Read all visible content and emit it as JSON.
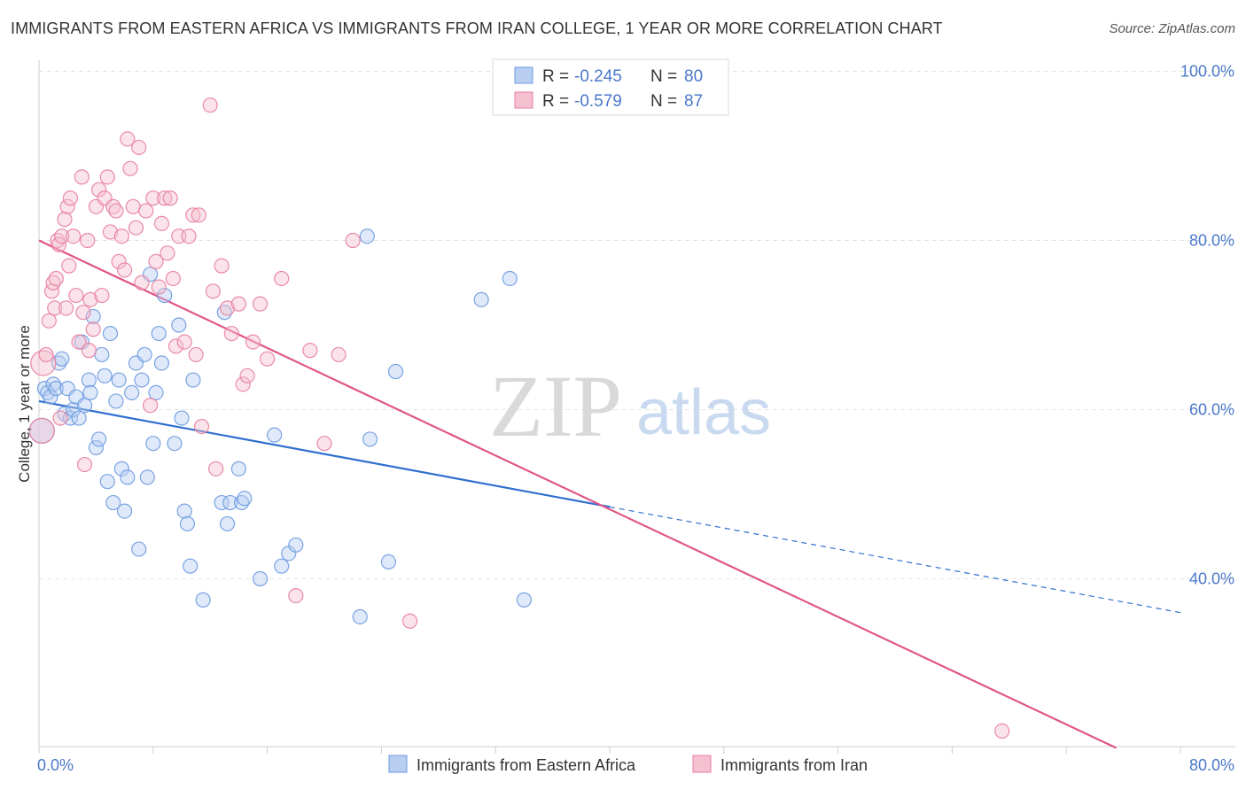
{
  "title": "IMMIGRANTS FROM EASTERN AFRICA VS IMMIGRANTS FROM IRAN COLLEGE, 1 YEAR OR MORE CORRELATION CHART",
  "source": "Source: ZipAtlas.com",
  "watermark": {
    "zip": "ZIP",
    "atlas": "atlas"
  },
  "chart_data": {
    "type": "scatter",
    "xlabel": "",
    "ylabel": "College, 1 year or more",
    "xlim": [
      0,
      80
    ],
    "ylim": [
      20,
      103
    ],
    "x_tick_labels": [
      {
        "value": 0,
        "label": "0.0%"
      },
      {
        "value": 80,
        "label": "80.0%"
      }
    ],
    "y_tick_labels": [
      {
        "value": 100,
        "label": "100.0%"
      },
      {
        "value": 80,
        "label": "80.0%"
      },
      {
        "value": 60,
        "label": "60.0%"
      },
      {
        "value": 40,
        "label": "40.0%"
      }
    ],
    "grid": true,
    "legend_placement": "top-center",
    "stats": [
      {
        "r_label": "R =",
        "r_value": "-0.245",
        "n_label": "N =",
        "n_value": "80"
      },
      {
        "r_label": "R =",
        "r_value": "-0.579",
        "n_label": "N =",
        "n_value": "87"
      }
    ],
    "series": [
      {
        "name": "Immigrants from Eastern Africa",
        "color": "#6b9ae0",
        "fill": "#b8cff2",
        "trend": {
          "x0": 0,
          "y0": 61.0,
          "x1": 40,
          "y1": 48.5,
          "dash_to_x": 80,
          "dash_to_y": 36.0,
          "color": "#2f6fcf"
        },
        "points": [
          [
            0.2,
            57.5
          ],
          [
            0.4,
            62.5
          ],
          [
            0.6,
            62.0
          ],
          [
            0.8,
            61.5
          ],
          [
            1.0,
            63.0
          ],
          [
            1.2,
            62.5
          ],
          [
            1.4,
            65.5
          ],
          [
            1.6,
            66.0
          ],
          [
            1.8,
            59.5
          ],
          [
            2.0,
            62.5
          ],
          [
            2.2,
            59.0
          ],
          [
            2.4,
            60.0
          ],
          [
            2.6,
            61.5
          ],
          [
            2.8,
            59.0
          ],
          [
            3.0,
            68.0
          ],
          [
            3.2,
            60.5
          ],
          [
            3.5,
            63.5
          ],
          [
            3.6,
            62.0
          ],
          [
            3.8,
            71.0
          ],
          [
            4.0,
            55.5
          ],
          [
            4.2,
            56.5
          ],
          [
            4.4,
            66.5
          ],
          [
            4.6,
            64.0
          ],
          [
            4.8,
            51.5
          ],
          [
            5.0,
            69.0
          ],
          [
            5.2,
            49.0
          ],
          [
            5.4,
            61.0
          ],
          [
            5.6,
            63.5
          ],
          [
            5.8,
            53.0
          ],
          [
            6.0,
            48.0
          ],
          [
            6.2,
            52.0
          ],
          [
            6.5,
            62.0
          ],
          [
            6.8,
            65.5
          ],
          [
            7.0,
            43.5
          ],
          [
            7.2,
            63.5
          ],
          [
            7.4,
            66.5
          ],
          [
            7.6,
            52.0
          ],
          [
            7.8,
            76.0
          ],
          [
            8.0,
            56.0
          ],
          [
            8.2,
            62.0
          ],
          [
            8.4,
            69.0
          ],
          [
            8.6,
            65.5
          ],
          [
            8.8,
            73.5
          ],
          [
            9.5,
            56.0
          ],
          [
            9.8,
            70.0
          ],
          [
            10.0,
            59.0
          ],
          [
            10.2,
            48.0
          ],
          [
            10.4,
            46.5
          ],
          [
            10.6,
            41.5
          ],
          [
            10.8,
            63.5
          ],
          [
            11.5,
            37.5
          ],
          [
            12.8,
            49.0
          ],
          [
            13.0,
            71.5
          ],
          [
            13.2,
            46.5
          ],
          [
            13.4,
            49.0
          ],
          [
            14.0,
            53.0
          ],
          [
            14.2,
            49.0
          ],
          [
            14.4,
            49.5
          ],
          [
            15.5,
            40.0
          ],
          [
            16.5,
            57.0
          ],
          [
            17.0,
            41.5
          ],
          [
            17.5,
            43.0
          ],
          [
            18.0,
            44.0
          ],
          [
            22.5,
            35.5
          ],
          [
            23.0,
            80.5
          ],
          [
            23.2,
            56.5
          ],
          [
            24.5,
            42.0
          ],
          [
            25.0,
            64.5
          ],
          [
            31.0,
            73.0
          ],
          [
            33.0,
            75.5
          ],
          [
            34.0,
            37.5
          ]
        ]
      },
      {
        "name": "Immigrants from Iran",
        "color": "#e87ea0",
        "fill": "#f5c0d0",
        "trend": {
          "x0": 0,
          "y0": 80.0,
          "x1": 75.5,
          "y1": 20.0,
          "color": "#e05588"
        },
        "points": [
          [
            0.2,
            57.5
          ],
          [
            0.3,
            65.5
          ],
          [
            0.5,
            66.5
          ],
          [
            0.7,
            70.5
          ],
          [
            0.9,
            74.0
          ],
          [
            1.0,
            75.0
          ],
          [
            1.1,
            72.0
          ],
          [
            1.2,
            75.5
          ],
          [
            1.3,
            80.0
          ],
          [
            1.4,
            79.5
          ],
          [
            1.5,
            59.0
          ],
          [
            1.6,
            80.5
          ],
          [
            1.8,
            82.5
          ],
          [
            1.9,
            72.0
          ],
          [
            2.0,
            84.0
          ],
          [
            2.1,
            77.0
          ],
          [
            2.2,
            85.0
          ],
          [
            2.4,
            80.5
          ],
          [
            2.6,
            73.5
          ],
          [
            2.8,
            68.0
          ],
          [
            3.0,
            87.5
          ],
          [
            3.1,
            71.5
          ],
          [
            3.2,
            53.5
          ],
          [
            3.4,
            80.0
          ],
          [
            3.5,
            67.0
          ],
          [
            3.6,
            73.0
          ],
          [
            3.8,
            69.5
          ],
          [
            4.0,
            84.0
          ],
          [
            4.2,
            86.0
          ],
          [
            4.4,
            73.5
          ],
          [
            4.6,
            85.0
          ],
          [
            4.8,
            87.5
          ],
          [
            5.0,
            81.0
          ],
          [
            5.2,
            84.0
          ],
          [
            5.4,
            83.5
          ],
          [
            5.6,
            77.5
          ],
          [
            5.8,
            80.5
          ],
          [
            6.0,
            76.5
          ],
          [
            6.2,
            92.0
          ],
          [
            6.4,
            88.5
          ],
          [
            6.6,
            84.0
          ],
          [
            6.8,
            81.5
          ],
          [
            7.0,
            91.0
          ],
          [
            7.2,
            75.0
          ],
          [
            7.5,
            83.5
          ],
          [
            7.8,
            60.5
          ],
          [
            8.0,
            85.0
          ],
          [
            8.2,
            77.5
          ],
          [
            8.4,
            74.5
          ],
          [
            8.6,
            82.0
          ],
          [
            8.8,
            85.0
          ],
          [
            9.0,
            78.5
          ],
          [
            9.2,
            85.0
          ],
          [
            9.4,
            75.5
          ],
          [
            9.6,
            67.5
          ],
          [
            9.8,
            80.5
          ],
          [
            10.2,
            68.0
          ],
          [
            10.5,
            80.5
          ],
          [
            10.8,
            83.0
          ],
          [
            11.0,
            66.5
          ],
          [
            11.2,
            83.0
          ],
          [
            11.4,
            58.0
          ],
          [
            12.0,
            96.0
          ],
          [
            12.2,
            74.0
          ],
          [
            12.4,
            53.0
          ],
          [
            12.8,
            77.0
          ],
          [
            13.2,
            72.0
          ],
          [
            13.5,
            69.0
          ],
          [
            14.0,
            72.5
          ],
          [
            14.3,
            63.0
          ],
          [
            14.6,
            64.0
          ],
          [
            15.0,
            68.0
          ],
          [
            15.5,
            72.5
          ],
          [
            16.0,
            66.0
          ],
          [
            17.0,
            75.5
          ],
          [
            18.0,
            38.0
          ],
          [
            19.0,
            67.0
          ],
          [
            20.0,
            56.0
          ],
          [
            21.0,
            66.5
          ],
          [
            22.0,
            80.0
          ],
          [
            26.0,
            35.0
          ],
          [
            67.5,
            22.0
          ]
        ]
      }
    ]
  }
}
